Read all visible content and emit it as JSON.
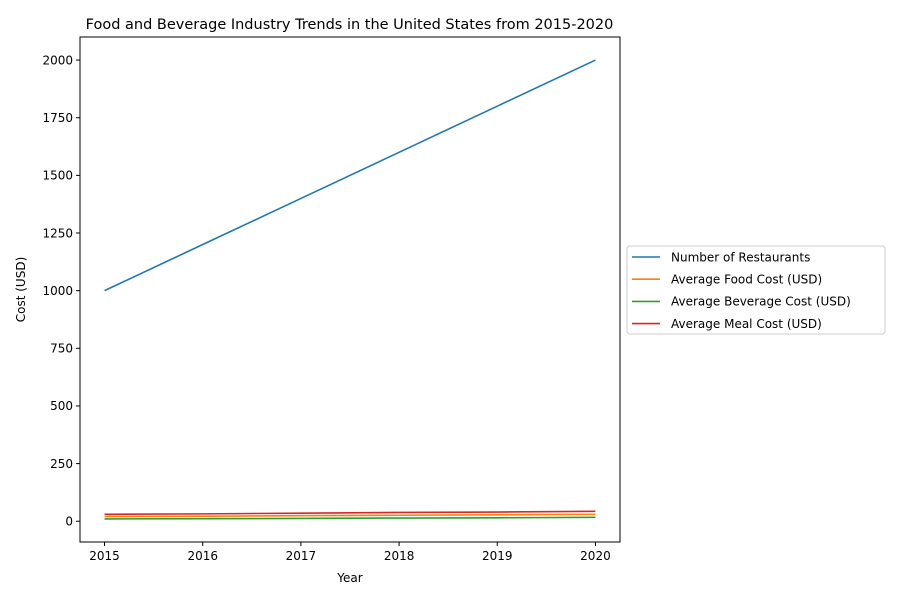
{
  "chart_data": {
    "type": "line",
    "title": "Food and Beverage Industry Trends in the United States from 2015-2020",
    "xlabel": "Year",
    "ylabel": "Cost (USD)",
    "x": [
      2015,
      2016,
      2017,
      2018,
      2019,
      2020
    ],
    "xlim": [
      2014.75,
      2020.25
    ],
    "ylim": [
      -90,
      2100
    ],
    "yticks": [
      0,
      250,
      500,
      750,
      1000,
      1250,
      1500,
      1750,
      2000
    ],
    "grid": false,
    "legend_position": "center-left outside right",
    "series": [
      {
        "name": "Number of Restaurants",
        "color": "#1f77b4",
        "values": [
          1000,
          1200,
          1400,
          1600,
          1800,
          2000
        ]
      },
      {
        "name": "Average Food Cost (USD)",
        "color": "#ff7f0e",
        "values": [
          20,
          22,
          24,
          26,
          28,
          30
        ]
      },
      {
        "name": "Average Beverage Cost (USD)",
        "color": "#2ca02c",
        "values": [
          10,
          11,
          12,
          14,
          15,
          17
        ]
      },
      {
        "name": "Average Meal Cost (USD)",
        "color": "#d62728",
        "values": [
          30,
          32,
          35,
          38,
          40,
          43
        ]
      }
    ]
  }
}
